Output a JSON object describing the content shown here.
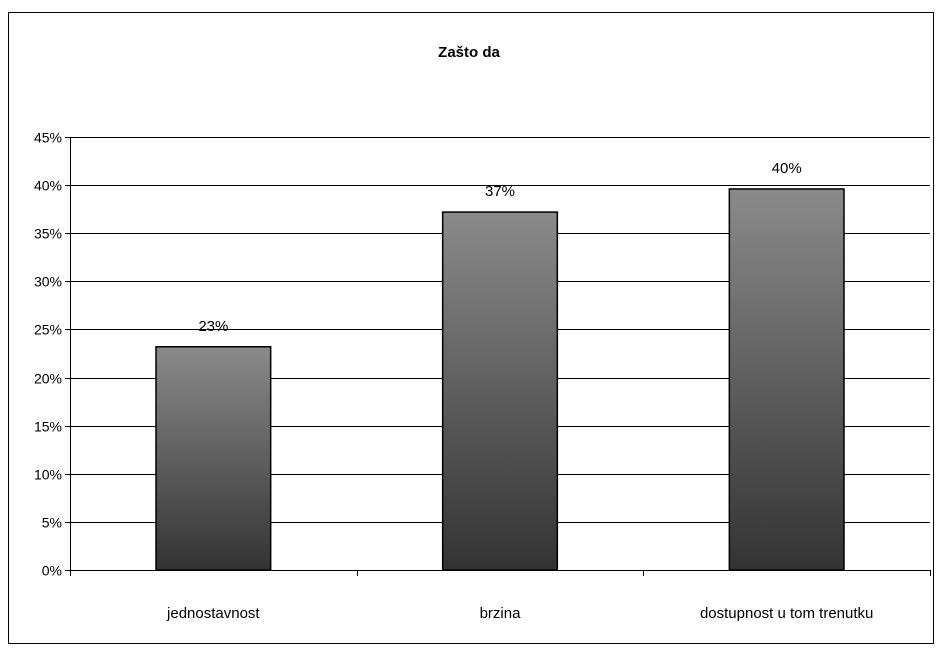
{
  "chart_data": {
    "type": "bar",
    "title": "Zašto da",
    "categories": [
      "jednostavnost",
      "brzina",
      "dostupnost u tom trenutku"
    ],
    "values": [
      23.2,
      37.2,
      39.6
    ],
    "data_labels": [
      "23%",
      "37%",
      "40%"
    ],
    "ylim": [
      0,
      45
    ],
    "y_ticks": [
      0,
      5,
      10,
      15,
      20,
      25,
      30,
      35,
      40,
      45
    ],
    "y_tick_labels": [
      "0%",
      "5%",
      "10%",
      "15%",
      "20%",
      "25%",
      "30%",
      "35%",
      "40%",
      "45%"
    ],
    "xlabel": "",
    "ylabel": "",
    "grid": true,
    "legend": "none",
    "colors": {
      "bar_top": "#8a8a8a",
      "bar_bottom": "#333333",
      "grid": "#000000"
    }
  }
}
